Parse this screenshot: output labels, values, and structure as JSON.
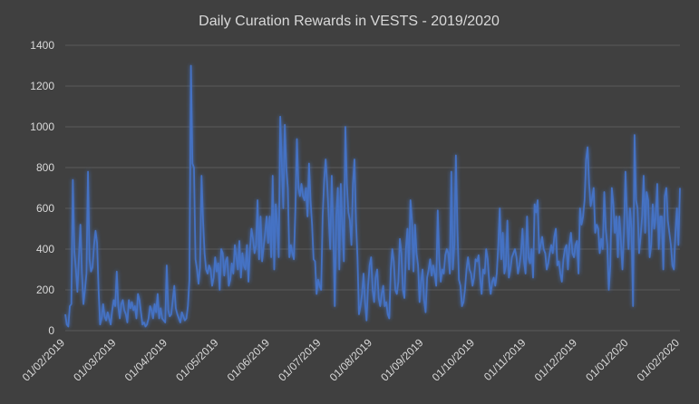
{
  "colors": {
    "background": "#404040",
    "gridline": "#5a5a5a",
    "text": "#d9d9d9",
    "series": "#4472c4"
  },
  "chart_data": {
    "type": "line",
    "title": "Daily Curation Rewards in VESTS - 2019/2020",
    "xlabel": "",
    "ylabel": "",
    "ylim": [
      0,
      1400
    ],
    "yticks": [
      0,
      200,
      400,
      600,
      800,
      1000,
      1200,
      1400
    ],
    "grid": true,
    "legend": "none",
    "x_range": [
      "01/02/2019",
      "01/02/2020"
    ],
    "xticks": [
      "01/02/2019",
      "01/03/2019",
      "01/04/2019",
      "01/05/2019",
      "01/06/2019",
      "01/07/2019",
      "01/08/2019",
      "01/09/2019",
      "01/10/2019",
      "01/11/2019",
      "01/12/2019",
      "01/01/2020",
      "01/02/2020"
    ],
    "series": [
      {
        "values": [
          80,
          30,
          20,
          120,
          130,
          740,
          390,
          300,
          190,
          360,
          520,
          280,
          130,
          200,
          280,
          780,
          350,
          290,
          310,
          420,
          490,
          430,
          200,
          30,
          60,
          130,
          70,
          50,
          90,
          60,
          30,
          100,
          150,
          120,
          290,
          120,
          60,
          130,
          150,
          100,
          80,
          40,
          150,
          110,
          140,
          100,
          120,
          60,
          180,
          150,
          90,
          30,
          40,
          20,
          30,
          60,
          120,
          100,
          60,
          130,
          90,
          180,
          60,
          110,
          60,
          50,
          40,
          320,
          100,
          70,
          80,
          150,
          220,
          110,
          80,
          60,
          40,
          90,
          70,
          50,
          60,
          120,
          250,
          1300,
          820,
          800,
          350,
          300,
          230,
          310,
          760,
          540,
          380,
          300,
          280,
          320,
          300,
          220,
          260,
          360,
          290,
          330,
          200,
          400,
          380,
          270,
          340,
          360,
          220,
          250,
          330,
          280,
          420,
          360,
          300,
          440,
          260,
          380,
          320,
          300,
          420,
          240,
          400,
          500,
          450,
          380,
          420,
          640,
          350,
          560,
          340,
          410,
          480,
          560,
          430,
          560,
          360,
          760,
          300,
          620,
          520,
          360,
          1050,
          820,
          600,
          1010,
          800,
          700,
          360,
          420,
          380,
          350,
          600,
          940,
          700,
          660,
          720,
          660,
          640,
          700,
          560,
          820,
          640,
          520,
          350,
          340,
          180,
          250,
          220,
          200,
          560,
          740,
          840,
          720,
          560,
          400,
          760,
          500,
          120,
          560,
          700,
          300,
          720,
          520,
          340,
          1000,
          720,
          580,
          540,
          420,
          720,
          840,
          540,
          360,
          80,
          120,
          180,
          280,
          140,
          50,
          220,
          320,
          360,
          200,
          140,
          260,
          300,
          160,
          120,
          180,
          220,
          120,
          140,
          80,
          60,
          300,
          400,
          340,
          200,
          180,
          240,
          450,
          380,
          200,
          160,
          400,
          500,
          300,
          640,
          540,
          290,
          520,
          380,
          320,
          140,
          240,
          300,
          150,
          90,
          260,
          300,
          350,
          270,
          320,
          280,
          220,
          590,
          350,
          240,
          300,
          280,
          370,
          400,
          380,
          280,
          780,
          300,
          420,
          860,
          500,
          250,
          220,
          120,
          140,
          200,
          300,
          360,
          300,
          280,
          220,
          260,
          350,
          340,
          370,
          260,
          180,
          300,
          280,
          400,
          350,
          240,
          180,
          240,
          260,
          220,
          280,
          420,
          600,
          350,
          480,
          280,
          320,
          540,
          260,
          300,
          360,
          380,
          400,
          360,
          280,
          320,
          380,
          500,
          340,
          280,
          560,
          360,
          330,
          400,
          260,
          620,
          580,
          640,
          380,
          420,
          460,
          400,
          380,
          300,
          330,
          380,
          420,
          380,
          460,
          500,
          320,
          340,
          280,
          240,
          350,
          400,
          420,
          300,
          420,
          480,
          380,
          360,
          420,
          440,
          280,
          600,
          520,
          560,
          640,
          840,
          900,
          720,
          610,
          650,
          700,
          480,
          520,
          500,
          380,
          450,
          400,
          680,
          500,
          420,
          200,
          320,
          700,
          620,
          480,
          560,
          360,
          560,
          440,
          300,
          480,
          780,
          560,
          400,
          600,
          500,
          120,
          960,
          640,
          600,
          380,
          460,
          560,
          760,
          480,
          680,
          640,
          360,
          420,
          620,
          500,
          560,
          720,
          400,
          560,
          560,
          300,
          660,
          700,
          540,
          480,
          420,
          320,
          300,
          480,
          600,
          420,
          700
        ]
      }
    ]
  }
}
